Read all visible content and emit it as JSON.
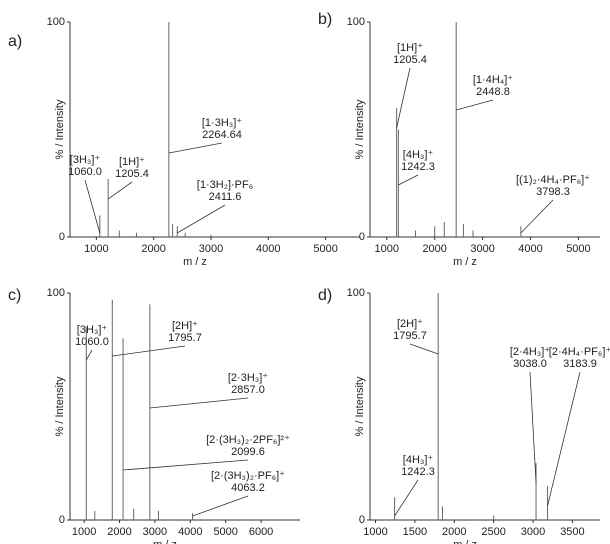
{
  "chart_data": [
    {
      "type": "bar",
      "panel": "a)",
      "xlabel": "m / z",
      "ylabel": "% / Intensity",
      "color": "#666666",
      "x": [
        1060.0,
        1205.4,
        1400,
        1700,
        2264.64,
        2330,
        2411.6,
        2550,
        3000
      ],
      "values": [
        10,
        27,
        3,
        2,
        100,
        6,
        5,
        2,
        1
      ],
      "xlim": [
        540,
        5600
      ],
      "xticks": [
        1000,
        2000,
        3000,
        4000,
        5000
      ],
      "ylim": [
        0,
        100
      ],
      "yticks": [
        0,
        100
      ],
      "annotations": [
        {
          "label": "[3H₃]⁺",
          "value": "1060.0"
        },
        {
          "label": "[1H]⁺",
          "value": "1205.4"
        },
        {
          "label": "[1·3H₃]⁺",
          "value": "2264.64"
        },
        {
          "label": "[1·3H₂]·PF₆",
          "value": "2411.6"
        }
      ]
    },
    {
      "type": "bar",
      "panel": "b)",
      "xlabel": "m / z",
      "ylabel": "% / Intensity",
      "color": "#666666",
      "x": [
        1205.4,
        1242.3,
        1600,
        2000,
        2200,
        2448.8,
        2600,
        2800,
        3798.3
      ],
      "values": [
        60,
        50,
        3,
        5,
        7,
        100,
        6,
        3,
        5
      ],
      "xlim": [
        650,
        5450
      ],
      "xticks": [
        1000,
        2000,
        3000,
        4000,
        5000
      ],
      "ylim": [
        0,
        100
      ],
      "yticks": [
        0,
        100
      ],
      "annotations": [
        {
          "label": "[1H]⁺",
          "value": "1205.4"
        },
        {
          "label": "[1·4H₄]⁺",
          "value": "2448.8"
        },
        {
          "label": "[4H₃]⁺",
          "value": "1242.3"
        },
        {
          "label": "[(1)₂·4H₄·PF₆]⁺",
          "value": "3798.3"
        }
      ]
    },
    {
      "type": "bar",
      "panel": "c)",
      "xlabel": "m / z",
      "ylabel": "% / Intensity",
      "color": "#666666",
      "x": [
        1060.0,
        1300,
        1795.7,
        2099.6,
        2400,
        2857.0,
        3100,
        4063.2
      ],
      "values": [
        85,
        4,
        97,
        80,
        5,
        95,
        4,
        3
      ],
      "xlim": [
        600,
        7100
      ],
      "xticks": [
        1000,
        2000,
        3000,
        4000,
        5000,
        6000
      ],
      "ylim": [
        0,
        100
      ],
      "yticks": [
        0,
        100
      ],
      "annotations": [
        {
          "label": "[3H₃]⁺",
          "value": "1060.0"
        },
        {
          "label": "[2H]⁺",
          "value": "1795.7"
        },
        {
          "label": "[2·3H₃]⁺",
          "value": "2857.0"
        },
        {
          "label": "[2·(3H₃)₂·2PF₆]²⁺",
          "value": "2099.6"
        },
        {
          "label": "[2·(3H₃)₂·PF₆]⁺",
          "value": "4063.2"
        }
      ]
    },
    {
      "type": "bar",
      "panel": "d)",
      "xlabel": "m / z",
      "ylabel": "% / Intensity",
      "color": "#666666",
      "x": [
        1242.3,
        1795.7,
        1850,
        2500,
        3038.0,
        3183.9
      ],
      "values": [
        10,
        100,
        6,
        2,
        25,
        15
      ],
      "xlim": [
        930,
        3850
      ],
      "xticks": [
        1000,
        1500,
        2000,
        2500,
        3000,
        3500
      ],
      "ylim": [
        0,
        100
      ],
      "yticks": [
        0,
        100
      ],
      "annotations": [
        {
          "label": "[2H]⁺",
          "value": "1795.7"
        },
        {
          "label": "[2·4H₃]⁺",
          "value": "3038.0"
        },
        {
          "label": "[2·4H₄·PF₆]⁺",
          "value": "3183.9"
        },
        {
          "label": "[4H₃]⁺",
          "value": "1242.3"
        }
      ]
    }
  ]
}
